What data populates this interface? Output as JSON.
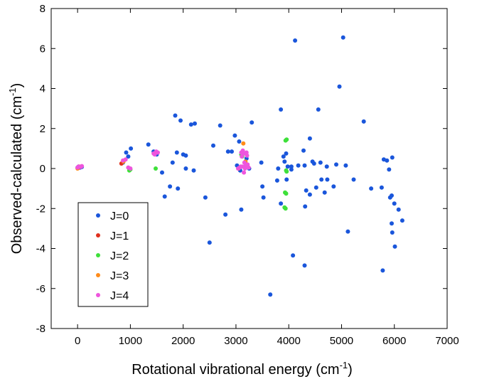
{
  "chart_data": {
    "type": "scatter",
    "xlabel_main": "Rotational vibrational energy (cm",
    "xlabel_sup": "-1",
    "xlabel_end": ")",
    "ylabel_main": "Observed-calculated (cm",
    "ylabel_sup": "-1",
    "ylabel_end": ")",
    "xlim": [
      -500,
      7000
    ],
    "ylim": [
      -8,
      8
    ],
    "xticks": [
      0,
      1000,
      2000,
      3000,
      4000,
      5000,
      6000,
      7000
    ],
    "yticks": [
      -8,
      -6,
      -4,
      -2,
      0,
      2,
      4,
      6,
      8
    ],
    "legend_position": "bottom-left",
    "series": [
      {
        "name": "J=0",
        "color": "#1a56db",
        "points": [
          [
            0,
            0.05
          ],
          [
            20,
            0.1
          ],
          [
            50,
            0.05
          ],
          [
            80,
            0.08
          ],
          [
            860,
            0.3
          ],
          [
            920,
            0.8
          ],
          [
            960,
            0.6
          ],
          [
            1010,
            1.0
          ],
          [
            1340,
            1.2
          ],
          [
            1440,
            0.85
          ],
          [
            1500,
            0.7
          ],
          [
            1600,
            -0.2
          ],
          [
            1650,
            -1.4
          ],
          [
            1750,
            -0.9
          ],
          [
            1800,
            0.3
          ],
          [
            1850,
            2.65
          ],
          [
            1880,
            0.8
          ],
          [
            1900,
            -1.0
          ],
          [
            1950,
            2.4
          ],
          [
            2000,
            0.7
          ],
          [
            2050,
            0.65
          ],
          [
            2050,
            0.0
          ],
          [
            2150,
            2.2
          ],
          [
            2200,
            -0.1
          ],
          [
            2220,
            2.25
          ],
          [
            2420,
            -1.45
          ],
          [
            2500,
            -3.7
          ],
          [
            2570,
            1.15
          ],
          [
            2700,
            2.15
          ],
          [
            2800,
            -2.3
          ],
          [
            2850,
            0.85
          ],
          [
            2920,
            0.85
          ],
          [
            2980,
            1.65
          ],
          [
            3020,
            0.15
          ],
          [
            3060,
            1.35
          ],
          [
            3080,
            -0.1
          ],
          [
            3100,
            -2.05
          ],
          [
            3200,
            0.5
          ],
          [
            3250,
            0.0
          ],
          [
            3300,
            2.3
          ],
          [
            3480,
            0.3
          ],
          [
            3500,
            -0.9
          ],
          [
            3520,
            -1.45
          ],
          [
            3650,
            -6.3
          ],
          [
            3780,
            -0.6
          ],
          [
            3800,
            0.0
          ],
          [
            3850,
            -1.75
          ],
          [
            3850,
            2.95
          ],
          [
            3900,
            0.6
          ],
          [
            3920,
            0.35
          ],
          [
            3950,
            0.75
          ],
          [
            3960,
            -0.55
          ],
          [
            3980,
            0.1
          ],
          [
            4050,
            -0.05
          ],
          [
            4050,
            0.1
          ],
          [
            4080,
            -4.35
          ],
          [
            4120,
            6.4
          ],
          [
            4180,
            0.15
          ],
          [
            4280,
            0.9
          ],
          [
            4300,
            -4.85
          ],
          [
            4300,
            0.15
          ],
          [
            4310,
            -1.9
          ],
          [
            4330,
            -1.1
          ],
          [
            4400,
            1.5
          ],
          [
            4400,
            -1.3
          ],
          [
            4450,
            0.35
          ],
          [
            4480,
            0.25
          ],
          [
            4520,
            -0.95
          ],
          [
            4560,
            2.95
          ],
          [
            4600,
            0.3
          ],
          [
            4620,
            -0.55
          ],
          [
            4680,
            -1.2
          ],
          [
            4720,
            0.1
          ],
          [
            4730,
            -0.55
          ],
          [
            4850,
            -0.9
          ],
          [
            4900,
            0.2
          ],
          [
            4960,
            4.1
          ],
          [
            5030,
            6.55
          ],
          [
            5080,
            0.15
          ],
          [
            5120,
            -3.15
          ],
          [
            5230,
            -0.55
          ],
          [
            5420,
            2.35
          ],
          [
            5560,
            -1.0
          ],
          [
            5760,
            -0.95
          ],
          [
            5780,
            -5.1
          ],
          [
            5800,
            0.45
          ],
          [
            5860,
            0.4
          ],
          [
            5900,
            -0.05
          ],
          [
            5920,
            -1.45
          ],
          [
            5950,
            -2.75
          ],
          [
            5950,
            -1.35
          ],
          [
            5960,
            -3.2
          ],
          [
            5960,
            0.55
          ],
          [
            6000,
            -1.75
          ],
          [
            6010,
            -3.9
          ],
          [
            6080,
            -2.05
          ],
          [
            6150,
            -2.6
          ]
        ]
      },
      {
        "name": "J=1",
        "color": "#e0301e",
        "points": [
          [
            10,
            0.02
          ],
          [
            830,
            0.25
          ]
        ]
      },
      {
        "name": "J=2",
        "color": "#3ee03a",
        "points": [
          [
            980,
            -0.1
          ],
          [
            1000,
            -0.05
          ],
          [
            1480,
            0.0
          ],
          [
            3100,
            0.7
          ],
          [
            3120,
            0.6
          ],
          [
            3940,
            1.4
          ],
          [
            3960,
            1.45
          ],
          [
            3930,
            -1.2
          ],
          [
            3950,
            -1.25
          ],
          [
            3920,
            -1.95
          ],
          [
            3940,
            -2.0
          ],
          [
            3950,
            -0.1
          ],
          [
            3960,
            -0.15
          ]
        ]
      },
      {
        "name": "J=3",
        "color": "#ff8c1a",
        "points": [
          [
            0,
            0.0
          ],
          [
            30,
            0.1
          ],
          [
            870,
            0.35
          ],
          [
            1480,
            0.8
          ],
          [
            3140,
            1.25
          ],
          [
            3180,
            0.35
          ],
          [
            3050,
            0.0
          ]
        ]
      },
      {
        "name": "J=4",
        "color": "#ee55dd",
        "points": [
          [
            0,
            0.05
          ],
          [
            20,
            0.1
          ],
          [
            60,
            0.08
          ],
          [
            80,
            0.12
          ],
          [
            860,
            0.4
          ],
          [
            910,
            0.45
          ],
          [
            960,
            0.05
          ],
          [
            1000,
            0.0
          ],
          [
            1440,
            0.75
          ],
          [
            1460,
            0.7
          ],
          [
            1490,
            0.85
          ],
          [
            1520,
            0.8
          ],
          [
            3040,
            0.0
          ],
          [
            3070,
            0.05
          ],
          [
            3090,
            0.1
          ],
          [
            3100,
            0.8
          ],
          [
            3110,
            0.6
          ],
          [
            3130,
            0.9
          ],
          [
            3150,
            0.75
          ],
          [
            3160,
            0.3
          ],
          [
            3170,
            0.0
          ],
          [
            3180,
            0.15
          ],
          [
            3200,
            0.8
          ],
          [
            3210,
            0.65
          ],
          [
            3220,
            0.2
          ],
          [
            3240,
            0.05
          ],
          [
            3150,
            -0.2
          ],
          [
            3120,
            0.1
          ]
        ]
      }
    ]
  }
}
